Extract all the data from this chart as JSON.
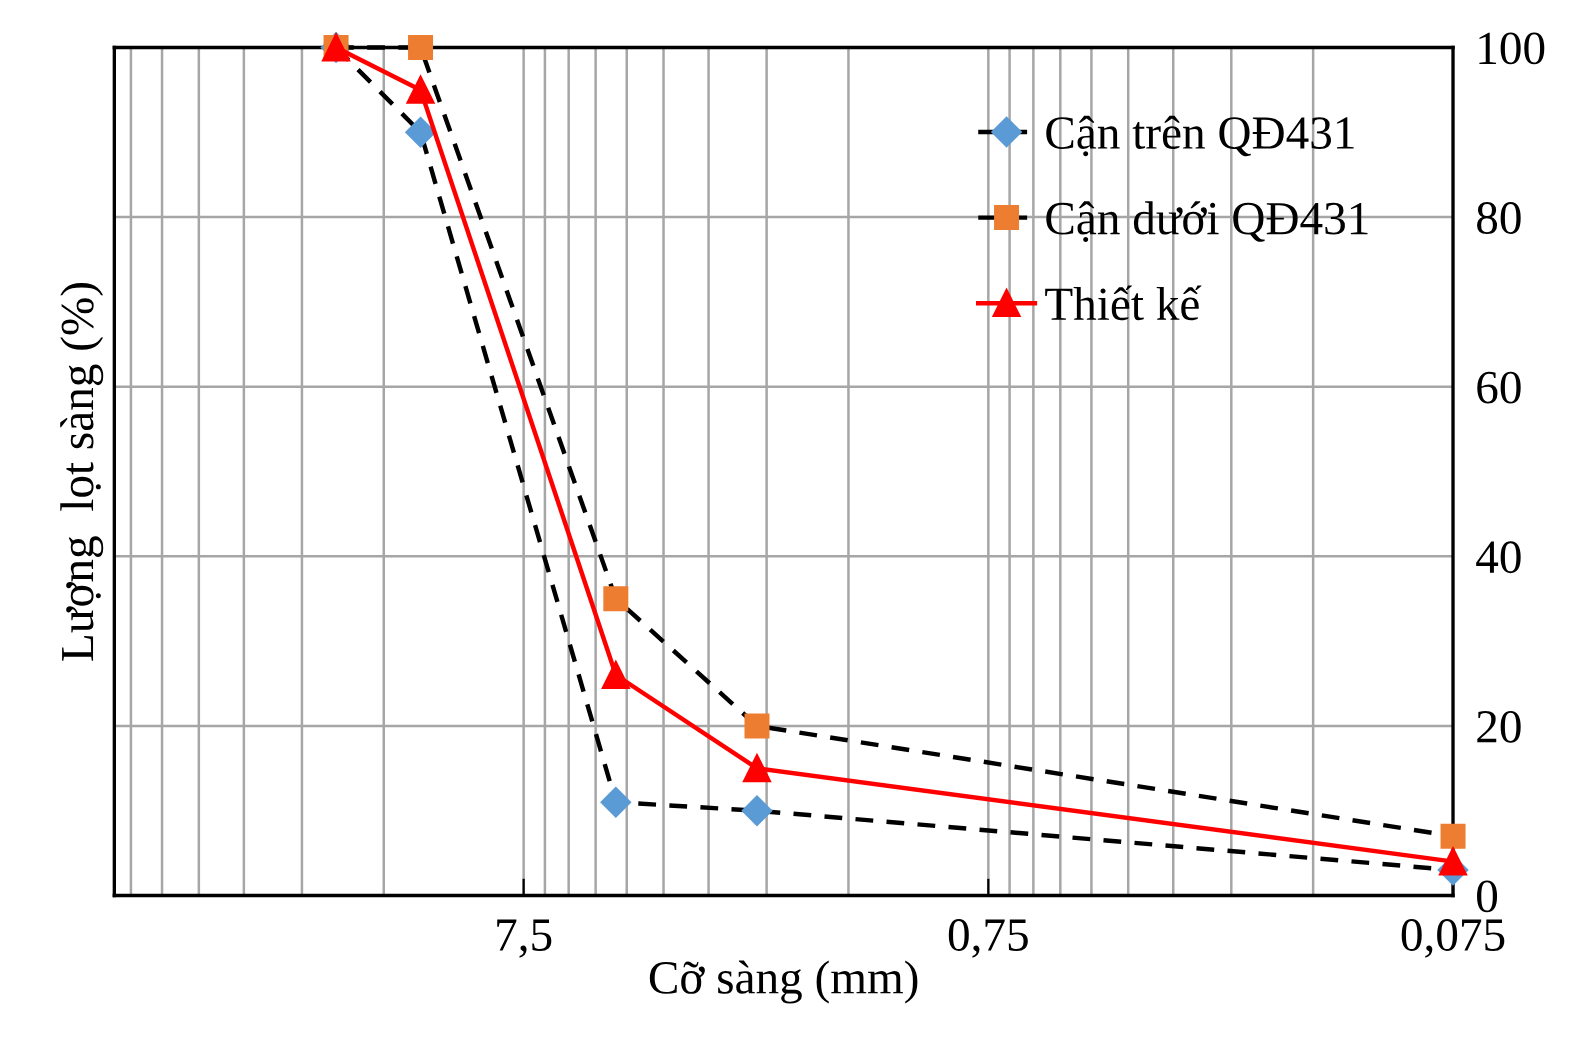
{
  "chart_data": {
    "type": "line",
    "xlabel": "Cỡ sàng (mm)",
    "ylabel": "Lượng  lọt sàng (%)",
    "log": "x",
    "xlim": [
      57,
      0.075
    ],
    "xticks": [
      {
        "value": 7.5,
        "label": "7,5"
      },
      {
        "value": 0.75,
        "label": "0,75"
      },
      {
        "value": 0.075,
        "label": "0,075"
      }
    ],
    "ylim": [
      0,
      100
    ],
    "yticks": [
      0,
      20,
      40,
      60,
      80,
      100
    ],
    "grid": true,
    "legend": "top right",
    "x": [
      19,
      12.5,
      4.75,
      2.36,
      0.075
    ],
    "series": [
      {
        "name": "Cận trên QĐ431",
        "color": "#5b9bd5",
        "marker": "diamond",
        "line_style": "dashed",
        "values": [
          100,
          90,
          11,
          10,
          3
        ]
      },
      {
        "name": "Cận dưới QĐ431",
        "color": "#ed7d31",
        "marker": "square",
        "line_style": "dashed",
        "values": [
          100,
          100,
          35,
          20,
          7
        ]
      },
      {
        "name": "Thiết kế",
        "color": "#ff0000",
        "marker": "triangle",
        "line_style": "solid",
        "values": [
          100,
          95,
          26,
          15,
          4
        ]
      }
    ]
  }
}
